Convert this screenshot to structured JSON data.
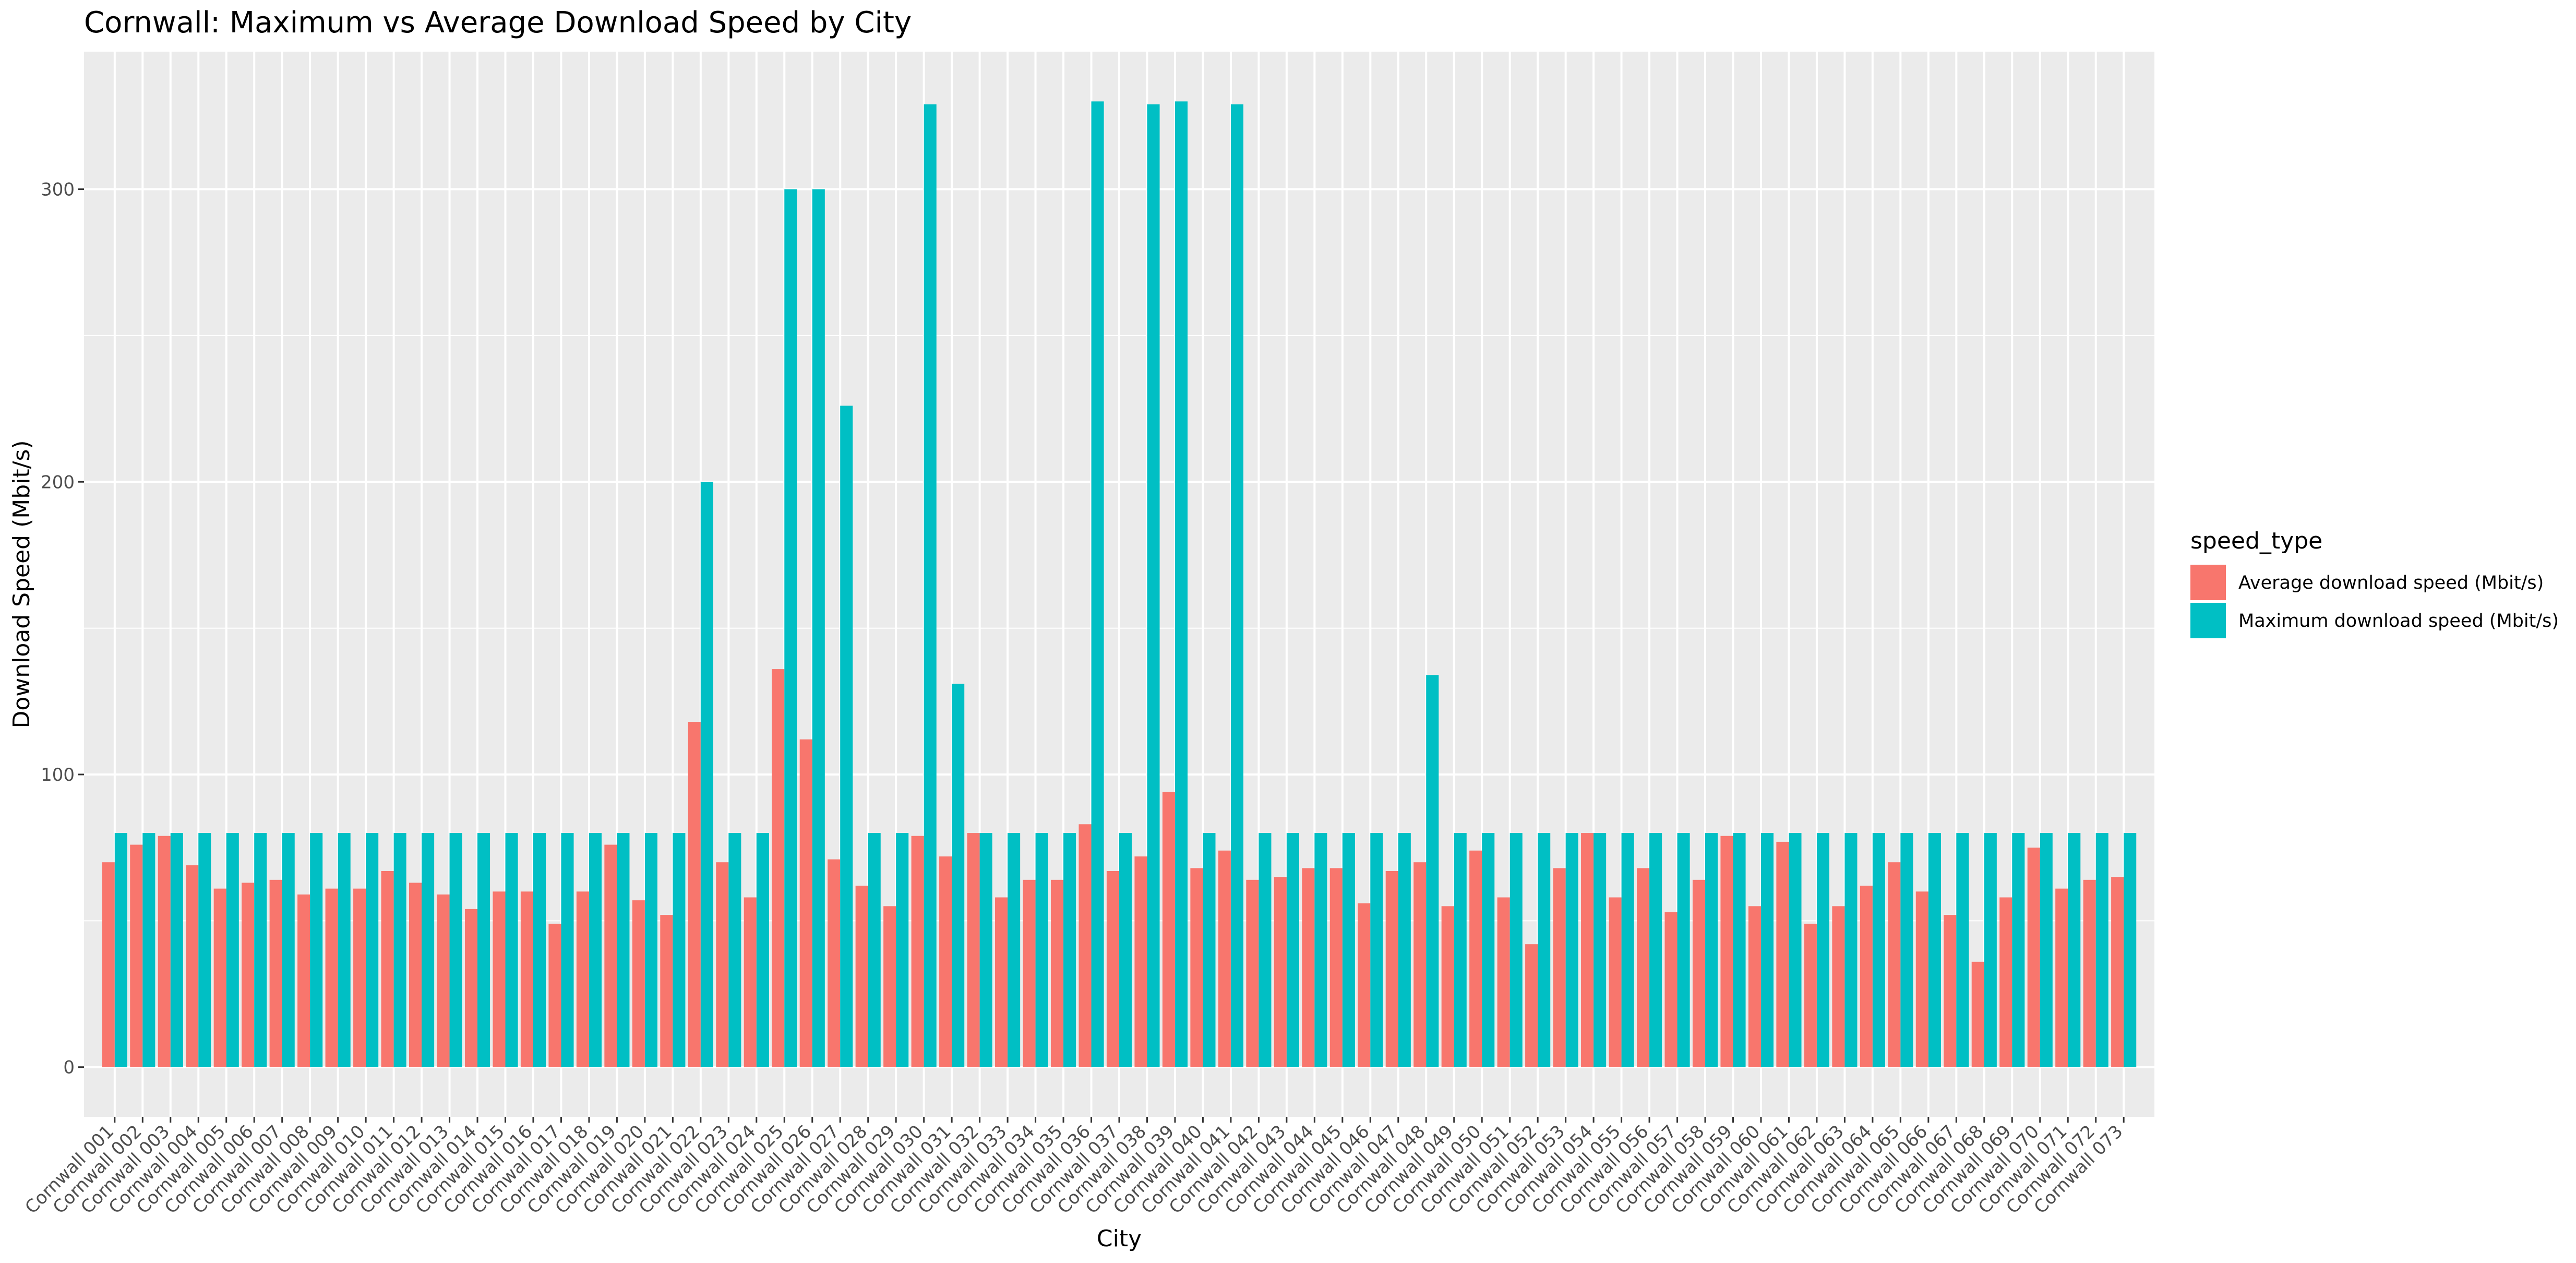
{
  "chart_data": {
    "type": "bar",
    "title": "Cornwall: Maximum vs Average Download Speed by City",
    "xlabel": "City",
    "ylabel": "Download Speed (Mbit/s)",
    "ylim": [
      -17,
      347
    ],
    "yticks": [
      0,
      100,
      200,
      300
    ],
    "grid": true,
    "legend": {
      "title": "speed_type",
      "position": "right"
    },
    "categories": [
      "Cornwall 001",
      "Cornwall 002",
      "Cornwall 003",
      "Cornwall 004",
      "Cornwall 005",
      "Cornwall 006",
      "Cornwall 007",
      "Cornwall 008",
      "Cornwall 009",
      "Cornwall 010",
      "Cornwall 011",
      "Cornwall 012",
      "Cornwall 013",
      "Cornwall 014",
      "Cornwall 015",
      "Cornwall 016",
      "Cornwall 017",
      "Cornwall 018",
      "Cornwall 019",
      "Cornwall 020",
      "Cornwall 021",
      "Cornwall 022",
      "Cornwall 023",
      "Cornwall 024",
      "Cornwall 025",
      "Cornwall 026",
      "Cornwall 027",
      "Cornwall 028",
      "Cornwall 029",
      "Cornwall 030",
      "Cornwall 031",
      "Cornwall 032",
      "Cornwall 033",
      "Cornwall 034",
      "Cornwall 035",
      "Cornwall 036",
      "Cornwall 037",
      "Cornwall 038",
      "Cornwall 039",
      "Cornwall 040",
      "Cornwall 041",
      "Cornwall 042",
      "Cornwall 043",
      "Cornwall 044",
      "Cornwall 045",
      "Cornwall 046",
      "Cornwall 047",
      "Cornwall 048",
      "Cornwall 049",
      "Cornwall 050",
      "Cornwall 051",
      "Cornwall 052",
      "Cornwall 053",
      "Cornwall 054",
      "Cornwall 055",
      "Cornwall 056",
      "Cornwall 057",
      "Cornwall 058",
      "Cornwall 059",
      "Cornwall 060",
      "Cornwall 061",
      "Cornwall 062",
      "Cornwall 063",
      "Cornwall 064",
      "Cornwall 065",
      "Cornwall 066",
      "Cornwall 067",
      "Cornwall 068",
      "Cornwall 069",
      "Cornwall 070",
      "Cornwall 071",
      "Cornwall 072",
      "Cornwall 073"
    ],
    "series": [
      {
        "name": "Average download speed (Mbit/s)",
        "color": "#F8766D",
        "values": [
          70,
          76,
          79,
          69,
          61,
          63,
          64,
          59,
          61,
          61,
          67,
          63,
          59,
          54,
          60,
          60,
          49,
          60,
          76,
          57,
          52,
          118,
          70,
          58,
          136,
          112,
          71,
          62,
          55,
          79,
          72,
          80,
          58,
          64,
          64,
          83,
          67,
          72,
          94,
          68,
          74,
          64,
          65,
          68,
          68,
          56,
          67,
          70,
          55,
          74,
          58,
          42,
          68,
          80,
          58,
          68,
          53,
          64,
          79,
          55,
          77,
          49,
          55,
          62,
          70,
          60,
          52,
          36,
          58,
          75,
          61,
          64,
          65
        ]
      },
      {
        "name": "Maximum download speed (Mbit/s)",
        "color": "#00BFC4",
        "values": [
          80,
          80,
          80,
          80,
          80,
          80,
          80,
          80,
          80,
          80,
          80,
          80,
          80,
          80,
          80,
          80,
          80,
          80,
          80,
          80,
          80,
          200,
          80,
          80,
          300,
          300,
          226,
          80,
          80,
          329,
          131,
          80,
          80,
          80,
          80,
          330,
          80,
          329,
          330,
          80,
          329,
          80,
          80,
          80,
          80,
          80,
          80,
          134,
          80,
          80,
          80,
          80,
          80,
          80,
          80,
          80,
          80,
          80,
          80,
          80,
          80,
          80,
          80,
          80,
          80,
          80,
          80,
          80,
          80,
          80,
          80,
          80,
          80
        ]
      }
    ]
  }
}
